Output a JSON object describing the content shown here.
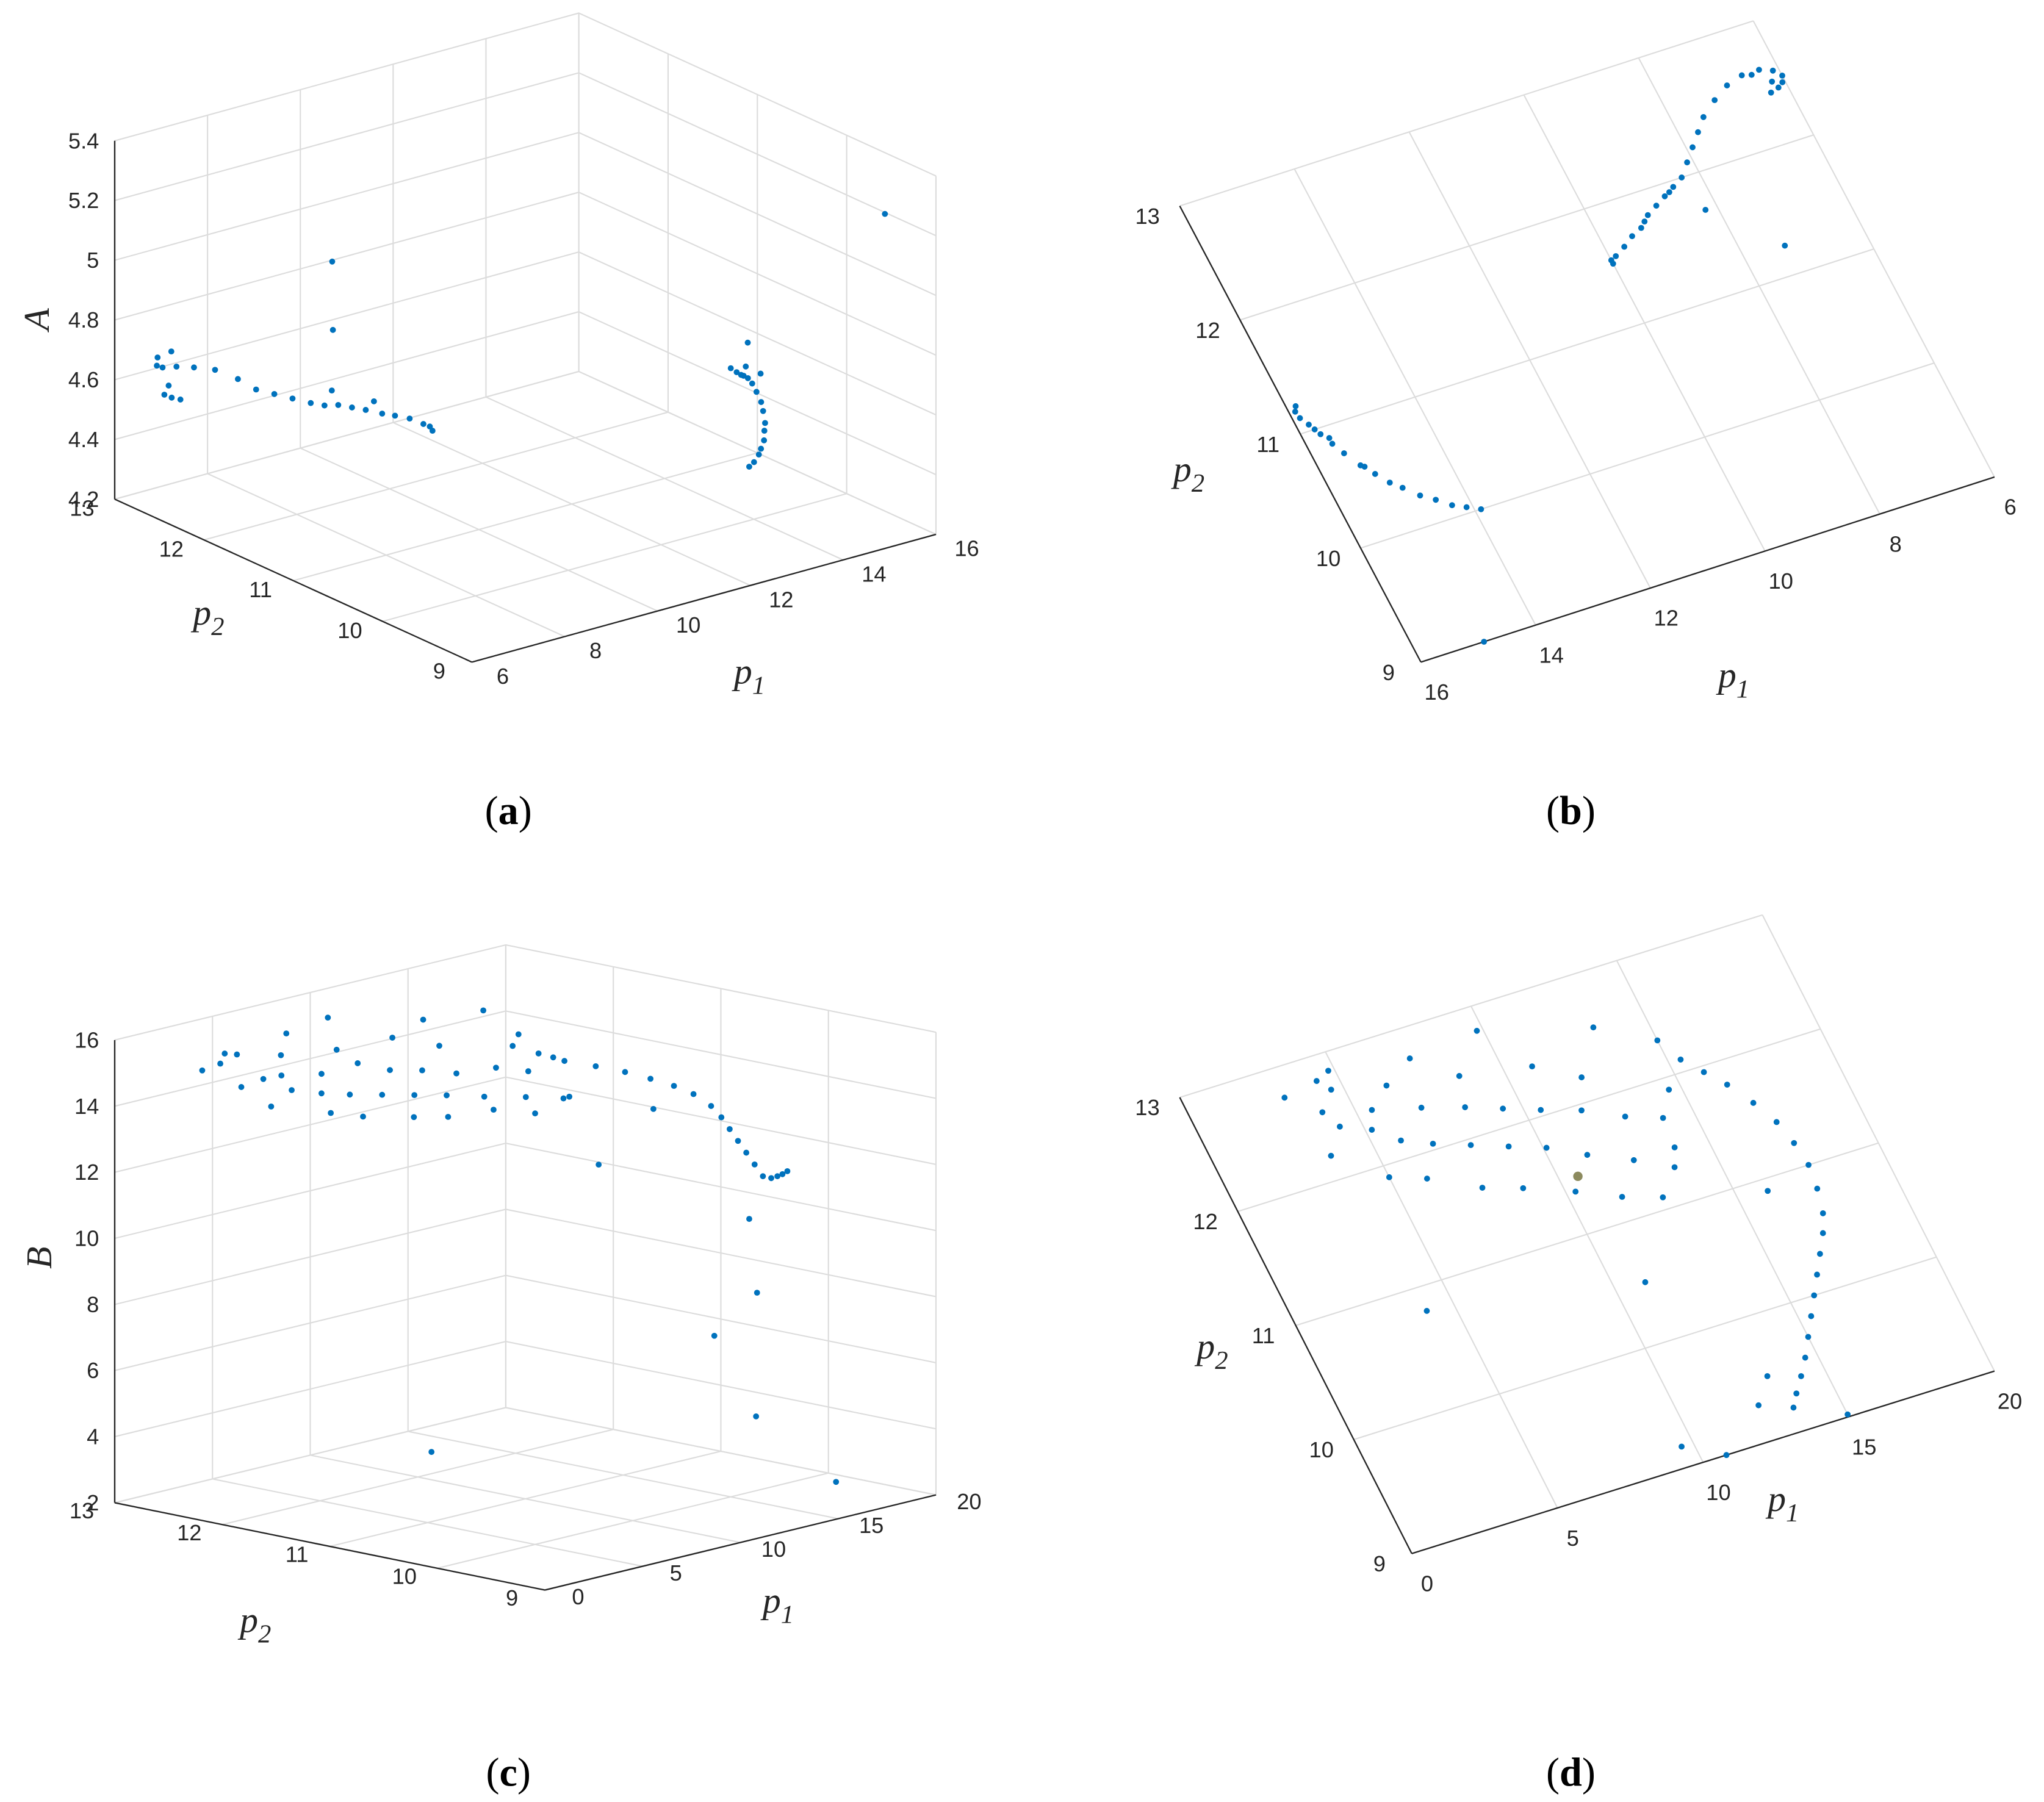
{
  "chart_data": [
    {
      "type": "scatter3d",
      "panel_label": "(a)",
      "xlabel": "p1",
      "ylabel": "p2",
      "zlabel": "A",
      "grid": true,
      "xlim": [
        6,
        16
      ],
      "ylim": [
        9,
        13
      ],
      "zlim": [
        4.2,
        5.4
      ],
      "xticks": [
        6,
        8,
        10,
        12,
        14,
        16
      ],
      "yticks": [
        9,
        10,
        11,
        12,
        13
      ],
      "zticks": [
        4.2,
        4.4,
        4.6,
        4.8,
        5,
        5.2,
        5.4
      ],
      "series": [
        {
          "color": "#0072bd",
          "x": [
            6.9,
            6.6,
            6.3,
            6.1,
            6.0,
            6.05,
            6.15,
            6.3,
            6.2,
            6.45,
            7.2,
            7.5,
            7.7,
            7.9,
            8.1,
            8.3,
            8.5,
            8.7,
            8.9,
            9.1,
            9.3,
            9.5,
            9.7,
            9.9,
            10.0,
            10.0,
            8.6,
            9.2,
            15.85,
            15.9,
            15.88,
            15.8,
            15.7,
            15.6,
            15.5,
            15.35,
            15.2,
            15.05,
            14.9,
            14.7,
            14.5,
            14.3,
            14.1,
            13.9,
            15.75,
            15.3,
            15.6,
            7.3,
            14.9,
            8.2
          ],
          "y": [
            12.58,
            12.62,
            12.62,
            12.58,
            12.52,
            12.47,
            12.44,
            12.42,
            12.5,
            12.6,
            12.5,
            12.4,
            12.3,
            12.2,
            12.1,
            12.0,
            11.95,
            11.9,
            11.85,
            11.8,
            11.72,
            11.68,
            11.62,
            11.57,
            11.55,
            11.52,
            11.92,
            11.76,
            11.22,
            11.18,
            11.12,
            11.05,
            10.95,
            10.85,
            10.75,
            10.62,
            10.52,
            10.42,
            10.35,
            10.25,
            10.18,
            10.1,
            10.05,
            10.0,
            11.0,
            10.6,
            10.9,
            11.24,
            9.0,
            11.7
          ],
          "z": [
            4.66,
            4.67,
            4.68,
            4.7,
            4.74,
            4.62,
            4.61,
            4.6,
            4.64,
            4.73,
            4.65,
            4.62,
            4.59,
            4.58,
            4.57,
            4.56,
            4.55,
            4.55,
            4.54,
            4.53,
            4.52,
            4.51,
            4.5,
            4.48,
            4.47,
            4.46,
            4.6,
            4.56,
            4.46,
            4.45,
            4.45,
            4.46,
            4.47,
            4.47,
            4.46,
            4.45,
            4.44,
            4.42,
            4.41,
            4.4,
            4.39,
            4.39,
            4.38,
            4.38,
            4.5,
            4.55,
            4.6,
            5.18,
            5.32,
            4.85
          ]
        }
      ]
    },
    {
      "type": "scatter",
      "panel_label": "(b)",
      "xlabel": "p1",
      "ylabel": "p2",
      "grid": true,
      "xlim": [
        6,
        16
      ],
      "ylim": [
        9,
        13
      ],
      "xticks": [
        6,
        8,
        10,
        12,
        14,
        16
      ],
      "yticks": [
        9,
        10,
        11,
        12,
        13
      ],
      "series": [
        {
          "color": "#0072bd",
          "x": [
            6.9,
            6.6,
            6.3,
            6.1,
            6.0,
            6.05,
            6.15,
            6.3,
            6.2,
            6.45,
            7.2,
            7.5,
            7.7,
            7.9,
            8.1,
            8.3,
            8.5,
            8.7,
            8.9,
            9.1,
            9.3,
            9.5,
            9.7,
            9.9,
            10.0,
            10.0,
            8.6,
            9.2,
            15.85,
            15.9,
            15.88,
            15.8,
            15.7,
            15.6,
            15.5,
            15.35,
            15.2,
            15.05,
            14.9,
            14.7,
            14.5,
            14.3,
            14.1,
            13.9,
            15.75,
            15.3,
            15.6,
            7.3,
            14.9,
            8.2
          ],
          "y": [
            12.58,
            12.62,
            12.62,
            12.58,
            12.52,
            12.47,
            12.44,
            12.42,
            12.5,
            12.6,
            12.5,
            12.4,
            12.3,
            12.2,
            12.1,
            12.0,
            11.95,
            11.9,
            11.85,
            11.8,
            11.72,
            11.68,
            11.62,
            11.57,
            11.55,
            11.52,
            11.92,
            11.76,
            11.22,
            11.18,
            11.12,
            11.05,
            10.95,
            10.85,
            10.75,
            10.62,
            10.52,
            10.42,
            10.35,
            10.25,
            10.18,
            10.1,
            10.05,
            10.0,
            11.0,
            10.6,
            10.9,
            11.24,
            9.0,
            11.7
          ]
        }
      ]
    },
    {
      "type": "scatter3d",
      "panel_label": "(c)",
      "xlabel": "p1",
      "ylabel": "p2",
      "zlabel": "B",
      "grid": true,
      "xlim": [
        0,
        20
      ],
      "ylim": [
        9,
        13
      ],
      "zlim": [
        2,
        16
      ],
      "xticks": [
        0,
        5,
        10,
        15,
        20
      ],
      "yticks": [
        9,
        10,
        11,
        12,
        13
      ],
      "zticks": [
        2,
        4,
        6,
        8,
        10,
        12,
        14,
        16
      ],
      "series": [
        {
          "color": "#0072bd",
          "x": [
            3.1,
            4.0,
            4.3,
            4.6,
            5.2,
            5.5,
            5.9,
            6.3,
            6.8,
            7.0,
            7.4,
            7.9,
            8.3,
            8.6,
            9.0,
            9.4,
            9.8,
            10.1,
            10.5,
            10.9,
            11.2,
            11.7,
            12.2,
            12.5,
            12.9,
            13.3,
            13.6,
            14.0,
            3.6,
            5.0,
            6.1,
            7.6,
            8.8,
            10.3,
            11.6,
            12.8,
            13.9,
            14.6,
            15.0,
            4.8,
            15.4,
            15.9,
            16.4,
            16.9,
            17.3,
            17.5,
            17.6,
            17.5,
            17.3,
            17.0,
            16.6,
            16.2,
            15.8,
            15.4,
            15.0,
            14.6,
            14.2,
            13.8,
            13.5,
            16.0,
            15.0,
            10.8,
            4.1,
            9.6,
            12.5,
            13.2,
            11.0,
            4.3
          ],
          "y": [
            12.75,
            12.55,
            12.4,
            12.7,
            12.3,
            12.45,
            12.15,
            12.6,
            12.05,
            12.35,
            12.75,
            11.95,
            12.25,
            12.5,
            11.85,
            12.15,
            12.8,
            11.75,
            12.05,
            12.4,
            11.6,
            11.95,
            12.2,
            11.45,
            11.8,
            12.55,
            11.3,
            11.7,
            12.2,
            11.9,
            11.8,
            11.6,
            11.5,
            11.35,
            11.2,
            11.1,
            11.45,
            11.9,
            12.3,
            12.85,
            12.1,
            11.95,
            11.8,
            11.6,
            11.4,
            11.2,
            11.0,
            10.8,
            10.6,
            10.45,
            10.3,
            10.15,
            10.0,
            9.85,
            9.7,
            9.55,
            9.42,
            9.3,
            9.2,
            10.9,
            9.02,
            9.0,
            10.8,
            9.17,
            9.3,
            9.5,
            10.5,
            12.8
          ],
          "z": [
            14.8,
            14.3,
            14.6,
            15.1,
            14.2,
            14.5,
            14.1,
            14.9,
            14.0,
            14.4,
            15.3,
            13.9,
            14.6,
            14.8,
            13.8,
            14.3,
            15.4,
            13.7,
            14.2,
            14.9,
            13.6,
            14.0,
            14.6,
            13.5,
            14.1,
            15.0,
            13.4,
            13.9,
            14.0,
            13.8,
            13.6,
            13.5,
            13.4,
            13.5,
            13.3,
            13.7,
            14.5,
            14.8,
            15.2,
            15.0,
            14.2,
            14.0,
            13.8,
            13.7,
            13.6,
            13.5,
            13.4,
            13.3,
            13.1,
            12.9,
            12.7,
            12.5,
            12.3,
            12.1,
            11.9,
            12.0,
            12.2,
            12.4,
            12.6,
            13.0,
            3.1,
            5.7,
            4.4,
            8.2,
            9.0,
            11.0,
            12.3,
            14.8
          ]
        }
      ]
    },
    {
      "type": "scatter",
      "panel_label": "(d)",
      "xlabel": "p1",
      "ylabel": "p2",
      "grid": true,
      "xlim": [
        0,
        20
      ],
      "ylim": [
        9,
        13
      ],
      "xticks": [
        0,
        5,
        10,
        15,
        20
      ],
      "yticks": [
        9,
        10,
        11,
        12,
        13
      ],
      "series": [
        {
          "color": "#0072bd",
          "x": [
            3.1,
            4.0,
            4.3,
            4.6,
            5.2,
            5.5,
            5.9,
            6.3,
            6.8,
            7.0,
            7.4,
            7.9,
            8.3,
            8.6,
            9.0,
            9.4,
            9.8,
            10.1,
            10.5,
            10.9,
            11.2,
            11.7,
            12.2,
            12.5,
            12.9,
            13.3,
            13.6,
            14.0,
            3.6,
            5.0,
            6.1,
            7.6,
            8.8,
            10.3,
            11.6,
            12.8,
            13.9,
            14.6,
            15.0,
            4.8,
            15.4,
            15.9,
            16.4,
            16.9,
            17.3,
            17.5,
            17.6,
            17.5,
            17.3,
            17.0,
            16.6,
            16.2,
            15.8,
            15.4,
            15.0,
            14.6,
            14.2,
            13.8,
            13.5,
            16.0,
            15.0,
            10.8,
            4.1,
            9.6,
            12.5,
            13.2,
            11.0,
            4.3
          ],
          "y": [
            12.75,
            12.55,
            12.4,
            12.7,
            12.3,
            12.45,
            12.15,
            12.6,
            12.05,
            12.35,
            12.75,
            11.95,
            12.25,
            12.5,
            11.85,
            12.15,
            12.8,
            11.75,
            12.05,
            12.4,
            11.6,
            11.95,
            12.2,
            11.45,
            11.8,
            12.55,
            11.3,
            11.7,
            12.2,
            11.9,
            11.8,
            11.6,
            11.5,
            11.35,
            11.2,
            11.1,
            11.45,
            11.9,
            12.3,
            12.85,
            12.1,
            11.95,
            11.8,
            11.6,
            11.4,
            11.2,
            11.0,
            10.8,
            10.6,
            10.45,
            10.3,
            10.15,
            10.0,
            9.85,
            9.7,
            9.55,
            9.42,
            9.3,
            9.2,
            10.9,
            9.02,
            9.0,
            10.8,
            9.17,
            9.3,
            9.5,
            10.5,
            12.8
          ]
        },
        {
          "color": "#8c8a5e",
          "x": [
            10.6
          ],
          "y": [
            11.46
          ]
        }
      ]
    }
  ]
}
